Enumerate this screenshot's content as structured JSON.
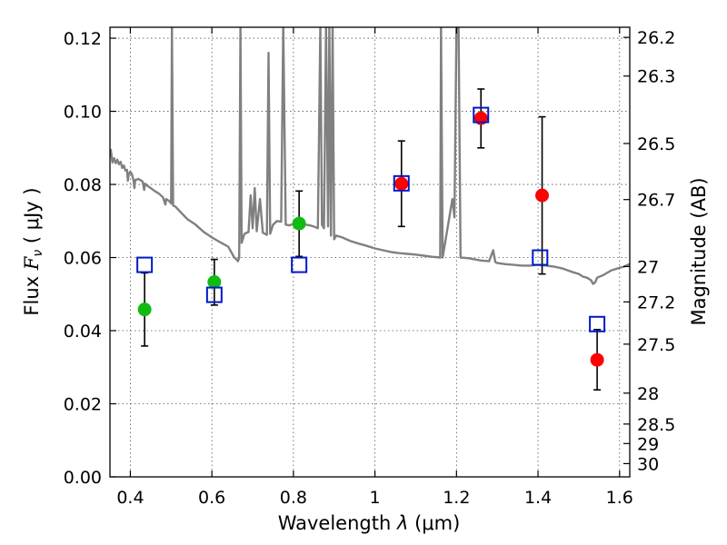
{
  "chart_data": {
    "type": "scatter",
    "xlabel": "Wavelength",
    "xlabel_symbol": "λ",
    "xlabel_unit": "(μm)",
    "ylabel": "Flux",
    "ylabel_symbol": "F",
    "ylabel_sub": "ν",
    "ylabel_unit": "( μJy )",
    "y2label": "Magnitude (AB)",
    "xlim": [
      0.35,
      1.625
    ],
    "ylim": [
      0.0,
      0.123
    ],
    "grid": true,
    "x_ticks": [
      {
        "value": 0.4,
        "label": "0.4"
      },
      {
        "value": 0.6,
        "label": "0.6"
      },
      {
        "value": 0.8,
        "label": "0.8"
      },
      {
        "value": 1.0,
        "label": "1"
      },
      {
        "value": 1.2,
        "label": "1.2"
      },
      {
        "value": 1.4,
        "label": "1.4"
      },
      {
        "value": 1.6,
        "label": "1.6"
      }
    ],
    "y_ticks": [
      {
        "value": 0.0,
        "label": "0.00"
      },
      {
        "value": 0.02,
        "label": "0.02"
      },
      {
        "value": 0.04,
        "label": "0.04"
      },
      {
        "value": 0.06,
        "label": "0.06"
      },
      {
        "value": 0.08,
        "label": "0.08"
      },
      {
        "value": 0.1,
        "label": "0.10"
      },
      {
        "value": 0.12,
        "label": "0.12"
      }
    ],
    "y2_ticks": [
      {
        "mag": 26.2,
        "label": "26.2"
      },
      {
        "mag": 26.3,
        "label": "26.3"
      },
      {
        "mag": 26.5,
        "label": "26.5"
      },
      {
        "mag": 26.7,
        "label": "26.7"
      },
      {
        "mag": 27.0,
        "label": "27"
      },
      {
        "mag": 27.2,
        "label": "27.2"
      },
      {
        "mag": 27.5,
        "label": "27.5"
      },
      {
        "mag": 28.0,
        "label": "28"
      },
      {
        "mag": 28.5,
        "label": "28.5"
      },
      {
        "mag": 29.0,
        "label": "29"
      },
      {
        "mag": 30.0,
        "label": "30"
      }
    ],
    "colors": {
      "model_spectrum": "#808080",
      "observed_blue_bands": "#11bb11",
      "observed_red_bands": "#ff0000",
      "model_photometry": "#0018c8",
      "error_bars": "#000000"
    },
    "observed": [
      {
        "x": 0.435,
        "y": 0.0458,
        "yerr_low": 0.0358,
        "yerr_high": 0.0558,
        "color": "#11bb11"
      },
      {
        "x": 0.606,
        "y": 0.0533,
        "yerr_low": 0.047,
        "yerr_high": 0.0595,
        "color": "#11bb11"
      },
      {
        "x": 0.814,
        "y": 0.0693,
        "yerr_low": 0.0603,
        "yerr_high": 0.0782,
        "color": "#11bb11"
      },
      {
        "x": 1.065,
        "y": 0.0802,
        "yerr_low": 0.0685,
        "yerr_high": 0.0919,
        "color": "#ff0000"
      },
      {
        "x": 1.26,
        "y": 0.0981,
        "yerr_low": 0.09,
        "yerr_high": 0.1061,
        "color": "#ff0000"
      },
      {
        "x": 1.41,
        "y": 0.077,
        "yerr_low": 0.0555,
        "yerr_high": 0.0985,
        "color": "#ff0000"
      },
      {
        "x": 1.545,
        "y": 0.032,
        "yerr_low": 0.0238,
        "yerr_high": 0.0403,
        "color": "#ff0000"
      }
    ],
    "model_photometry": [
      {
        "x": 0.435,
        "y": 0.058
      },
      {
        "x": 0.606,
        "y": 0.0498
      },
      {
        "x": 0.814,
        "y": 0.058
      },
      {
        "x": 1.065,
        "y": 0.0803
      },
      {
        "x": 1.26,
        "y": 0.099
      },
      {
        "x": 1.405,
        "y": 0.06
      },
      {
        "x": 1.545,
        "y": 0.0418
      }
    ],
    "model_spectrum": [
      [
        0.35,
        0.0875
      ],
      [
        0.352,
        0.0895
      ],
      [
        0.356,
        0.086
      ],
      [
        0.36,
        0.0872
      ],
      [
        0.364,
        0.0858
      ],
      [
        0.368,
        0.0868
      ],
      [
        0.372,
        0.0855
      ],
      [
        0.376,
        0.0862
      ],
      [
        0.38,
        0.0845
      ],
      [
        0.384,
        0.0852
      ],
      [
        0.388,
        0.0838
      ],
      [
        0.392,
        0.084
      ],
      [
        0.394,
        0.081
      ],
      [
        0.396,
        0.0828
      ],
      [
        0.4,
        0.0835
      ],
      [
        0.404,
        0.0828
      ],
      [
        0.408,
        0.081
      ],
      [
        0.41,
        0.079
      ],
      [
        0.412,
        0.0812
      ],
      [
        0.42,
        0.0815
      ],
      [
        0.43,
        0.0808
      ],
      [
        0.434,
        0.0785
      ],
      [
        0.436,
        0.0802
      ],
      [
        0.44,
        0.0798
      ],
      [
        0.45,
        0.079
      ],
      [
        0.46,
        0.0782
      ],
      [
        0.47,
        0.0775
      ],
      [
        0.48,
        0.0765
      ],
      [
        0.486,
        0.0745
      ],
      [
        0.488,
        0.076
      ],
      [
        0.495,
        0.0755
      ],
      [
        0.5,
        0.0748
      ],
      [
        0.502,
        0.1235
      ],
      [
        0.505,
        0.0742
      ],
      [
        0.51,
        0.074
      ],
      [
        0.52,
        0.0728
      ],
      [
        0.54,
        0.0705
      ],
      [
        0.56,
        0.069
      ],
      [
        0.58,
        0.067
      ],
      [
        0.6,
        0.0655
      ],
      [
        0.62,
        0.0642
      ],
      [
        0.64,
        0.063
      ],
      [
        0.655,
        0.06
      ],
      [
        0.66,
        0.0595
      ],
      [
        0.664,
        0.059
      ],
      [
        0.667,
        0.06
      ],
      [
        0.67,
        0.1235
      ],
      [
        0.673,
        0.064
      ],
      [
        0.68,
        0.0665
      ],
      [
        0.69,
        0.067
      ],
      [
        0.695,
        0.077
      ],
      [
        0.7,
        0.068
      ],
      [
        0.705,
        0.079
      ],
      [
        0.71,
        0.0672
      ],
      [
        0.718,
        0.076
      ],
      [
        0.725,
        0.0668
      ],
      [
        0.735,
        0.0662
      ],
      [
        0.739,
        0.116
      ],
      [
        0.743,
        0.0665
      ],
      [
        0.75,
        0.069
      ],
      [
        0.76,
        0.07
      ],
      [
        0.77,
        0.0698
      ],
      [
        0.775,
        0.1235
      ],
      [
        0.781,
        0.069
      ],
      [
        0.79,
        0.0688
      ],
      [
        0.8,
        0.0692
      ],
      [
        0.81,
        0.07
      ],
      [
        0.82,
        0.0698
      ],
      [
        0.83,
        0.069
      ],
      [
        0.84,
        0.0688
      ],
      [
        0.85,
        0.0685
      ],
      [
        0.86,
        0.068
      ],
      [
        0.866,
        0.1235
      ],
      [
        0.87,
        0.069
      ],
      [
        0.875,
        0.068
      ],
      [
        0.88,
        0.1235
      ],
      [
        0.885,
        0.0685
      ],
      [
        0.888,
        0.1235
      ],
      [
        0.892,
        0.066
      ],
      [
        0.896,
        0.1235
      ],
      [
        0.9,
        0.065
      ],
      [
        0.905,
        0.066
      ],
      [
        0.92,
        0.0655
      ],
      [
        0.94,
        0.0645
      ],
      [
        0.96,
        0.0638
      ],
      [
        0.98,
        0.0632
      ],
      [
        1.0,
        0.0625
      ],
      [
        1.02,
        0.062
      ],
      [
        1.04,
        0.0615
      ],
      [
        1.06,
        0.0612
      ],
      [
        1.08,
        0.061
      ],
      [
        1.1,
        0.0608
      ],
      [
        1.12,
        0.0605
      ],
      [
        1.14,
        0.0602
      ],
      [
        1.16,
        0.06
      ],
      [
        1.162,
        0.1235
      ],
      [
        1.166,
        0.06
      ],
      [
        1.19,
        0.076
      ],
      [
        1.195,
        0.071
      ],
      [
        1.2,
        0.1235
      ],
      [
        1.205,
        0.1235
      ],
      [
        1.21,
        0.06
      ],
      [
        1.23,
        0.0598
      ],
      [
        1.26,
        0.0592
      ],
      [
        1.28,
        0.059
      ],
      [
        1.29,
        0.062
      ],
      [
        1.295,
        0.0588
      ],
      [
        1.3,
        0.0585
      ],
      [
        1.32,
        0.0582
      ],
      [
        1.34,
        0.058
      ],
      [
        1.36,
        0.0578
      ],
      [
        1.38,
        0.0578
      ],
      [
        1.4,
        0.058
      ],
      [
        1.42,
        0.0578
      ],
      [
        1.44,
        0.0575
      ],
      [
        1.46,
        0.057
      ],
      [
        1.48,
        0.0562
      ],
      [
        1.5,
        0.0555
      ],
      [
        1.51,
        0.0548
      ],
      [
        1.52,
        0.0545
      ],
      [
        1.53,
        0.0538
      ],
      [
        1.535,
        0.0528
      ],
      [
        1.54,
        0.0532
      ],
      [
        1.545,
        0.0545
      ],
      [
        1.56,
        0.0552
      ],
      [
        1.58,
        0.0565
      ],
      [
        1.6,
        0.0572
      ],
      [
        1.61,
        0.0575
      ],
      [
        1.62,
        0.058
      ],
      [
        1.625,
        0.0582
      ]
    ]
  }
}
